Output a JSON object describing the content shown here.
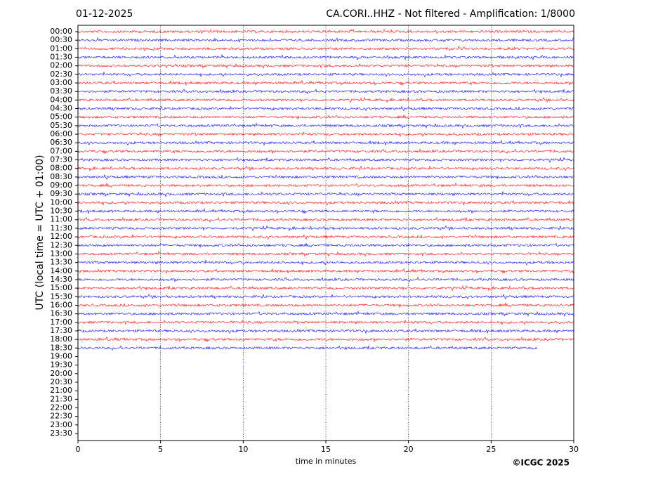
{
  "chart_data": {
    "type": "helicorder",
    "date": "01-12-2025",
    "title": "CA.CORI..HHZ - Not filtered - Amplification: 1/8000",
    "ylabel": "UTC (local time = UTC + 01:00)",
    "xlabel": "time in minutes",
    "credit": "©ICGC 2025",
    "xlim": [
      0,
      30
    ],
    "xticks": [
      0,
      5,
      10,
      15,
      20,
      25,
      30
    ],
    "grid": true,
    "colors": [
      "#ff0000",
      "#0000ff"
    ],
    "categories": [
      "00:00",
      "00:30",
      "01:00",
      "01:30",
      "02:00",
      "02:30",
      "03:00",
      "03:30",
      "04:00",
      "04:30",
      "05:00",
      "05:30",
      "06:00",
      "06:30",
      "07:00",
      "07:30",
      "08:00",
      "08:30",
      "09:00",
      "09:30",
      "10:00",
      "10:30",
      "11:00",
      "11:30",
      "12:00",
      "12:30",
      "13:00",
      "13:30",
      "14:00",
      "14:30",
      "15:00",
      "15:30",
      "16:00",
      "16:30",
      "17:00",
      "17:30",
      "18:00",
      "18:30",
      "19:00",
      "19:30",
      "20:00",
      "20:30",
      "21:00",
      "21:30",
      "22:00",
      "22:30",
      "23:00",
      "23:30"
    ],
    "trace_end": [
      30,
      30,
      30,
      30,
      30,
      30,
      30,
      30,
      30,
      30,
      30,
      30,
      30,
      30,
      30,
      30,
      30,
      30,
      30,
      30,
      30,
      30,
      30,
      30,
      30,
      30,
      30,
      30,
      30,
      30,
      30,
      30,
      30,
      30,
      30,
      30,
      30,
      27.8
    ]
  }
}
